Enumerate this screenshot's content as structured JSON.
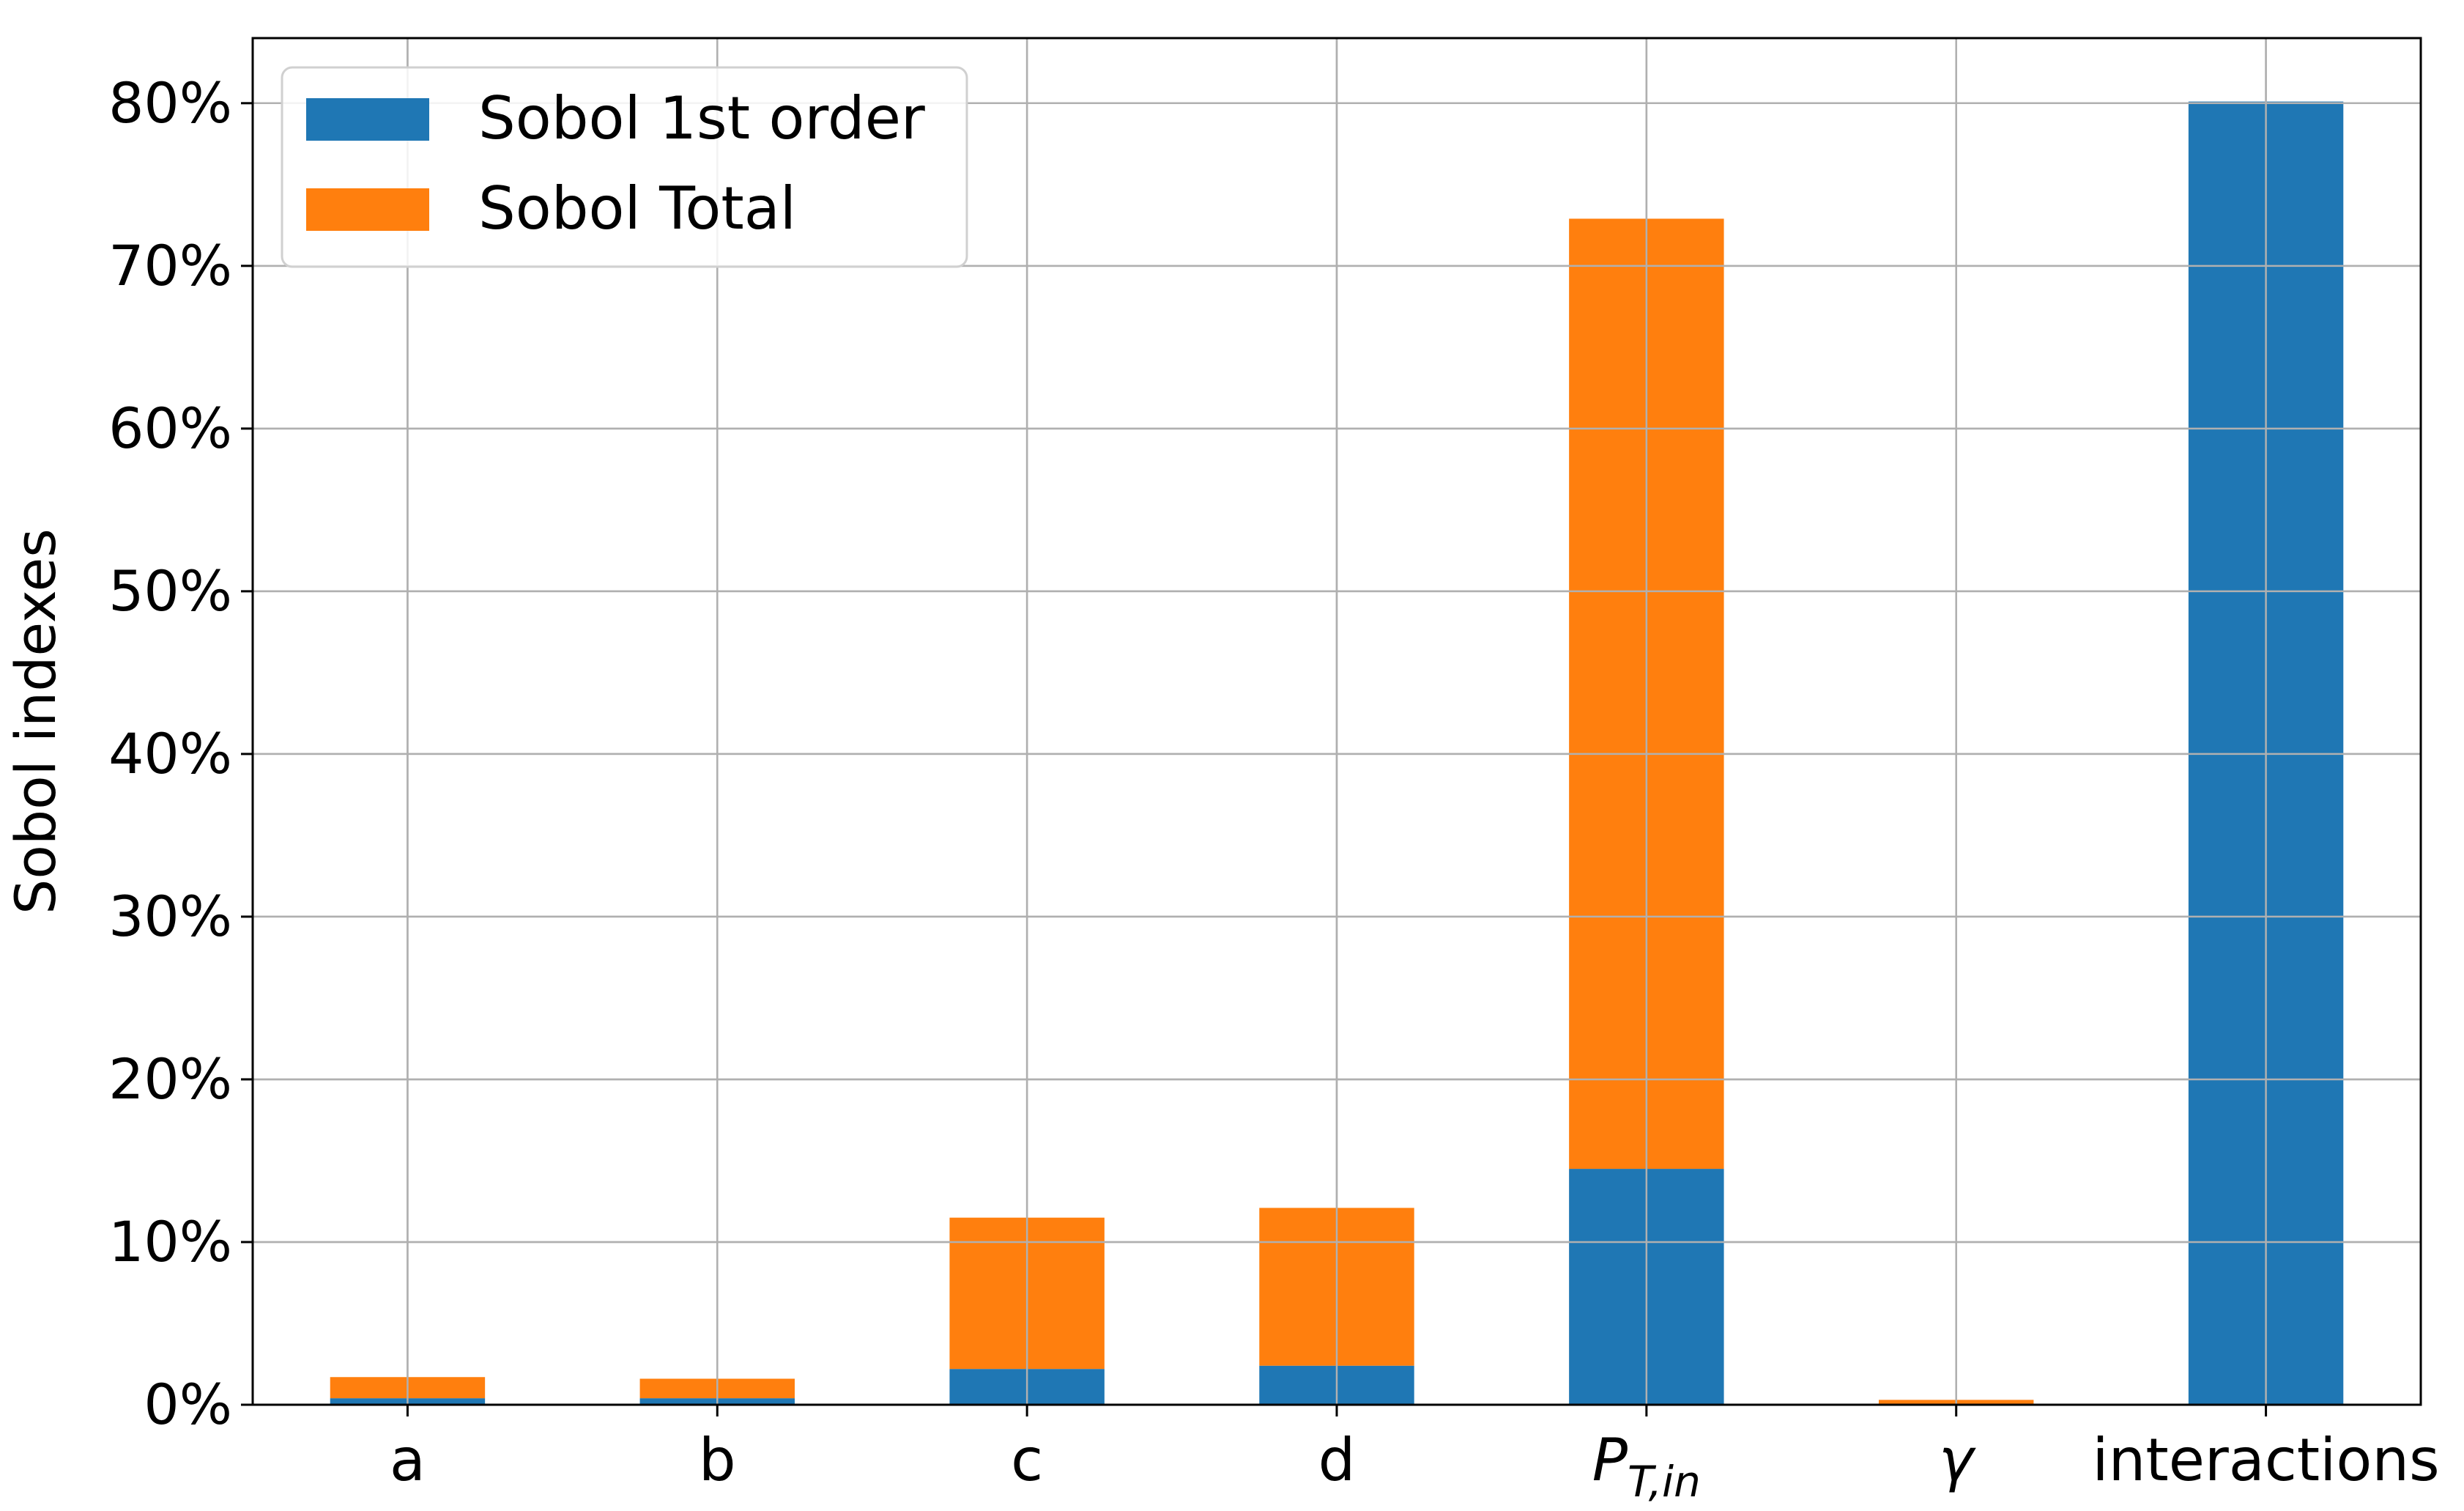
{
  "chart_data": {
    "type": "bar",
    "stacked": true,
    "title": "",
    "xlabel": "",
    "ylabel": "Sobol indexes",
    "categories": [
      "a",
      "b",
      "c",
      "d",
      "P_{T,in}",
      "γ",
      "interactions"
    ],
    "series": [
      {
        "name": "Sobol 1st order",
        "color": "#1f77b4",
        "values": [
          0.4,
          0.4,
          2.2,
          2.4,
          14.5,
          0.0,
          80.1
        ]
      },
      {
        "name": "Sobol Total",
        "color": "#ff7f0e",
        "values": [
          1.3,
          1.2,
          9.3,
          9.7,
          58.4,
          0.3,
          0.0
        ]
      }
    ],
    "ylim": [
      0,
      84
    ],
    "yticks": [
      0,
      10,
      20,
      30,
      40,
      50,
      60,
      70,
      80
    ],
    "ytick_format": "{v}%",
    "grid": true,
    "legend": {
      "placement": "top-left",
      "entries": [
        "Sobol 1st order",
        "Sobol Total"
      ]
    }
  }
}
